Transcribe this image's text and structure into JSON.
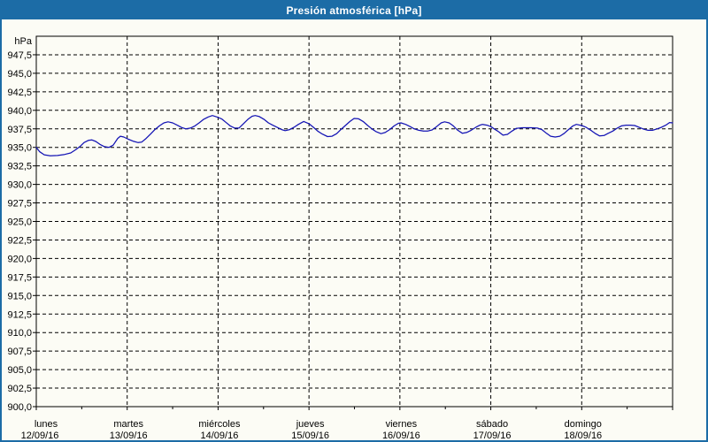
{
  "window": {
    "title": "Presión atmosférica [hPa]"
  },
  "colors": {
    "titlebar_bg": "#1c6ca6",
    "titlebar_text": "#ffffff",
    "frame": "#1c6ca6",
    "background": "#fcfcf5",
    "grid": "#000000",
    "axis": "#000000",
    "line": "#1212b4"
  },
  "chart_data": {
    "type": "line",
    "title": "Presión atmosférica [hPa]",
    "ylabel": "hPa",
    "ylim": [
      900,
      950
    ],
    "grid": "dashed",
    "legend": "none",
    "x_hours": 168,
    "y_ticks": [
      {
        "v": 947.5,
        "label": "947,5"
      },
      {
        "v": 945.0,
        "label": "945,0"
      },
      {
        "v": 942.5,
        "label": "942,5"
      },
      {
        "v": 940.0,
        "label": "940,0"
      },
      {
        "v": 937.5,
        "label": "937,5"
      },
      {
        "v": 935.0,
        "label": "935,0"
      },
      {
        "v": 932.5,
        "label": "932,5"
      },
      {
        "v": 930.0,
        "label": "930,0"
      },
      {
        "v": 927.5,
        "label": "927,5"
      },
      {
        "v": 925.0,
        "label": "925,0"
      },
      {
        "v": 922.5,
        "label": "922,5"
      },
      {
        "v": 920.0,
        "label": "920,0"
      },
      {
        "v": 917.5,
        "label": "917,5"
      },
      {
        "v": 915.0,
        "label": "915,0"
      },
      {
        "v": 912.5,
        "label": "912,5"
      },
      {
        "v": 910.0,
        "label": "910,0"
      },
      {
        "v": 907.5,
        "label": "907,5"
      },
      {
        "v": 905.0,
        "label": "905,0"
      },
      {
        "v": 902.5,
        "label": "902,5"
      },
      {
        "v": 900.0,
        "label": "900,0"
      }
    ],
    "x_days": [
      {
        "name": "lunes",
        "date": "12/09/16"
      },
      {
        "name": "martes",
        "date": "13/09/16"
      },
      {
        "name": "miércoles",
        "date": "14/09/16"
      },
      {
        "name": "jueves",
        "date": "15/09/16"
      },
      {
        "name": "viernes",
        "date": "16/09/16"
      },
      {
        "name": "sábado",
        "date": "17/09/16"
      },
      {
        "name": "domingo",
        "date": "18/09/16"
      }
    ],
    "series": [
      {
        "name": "Presión atmosférica",
        "color": "#1212b4",
        "points": [
          [
            0,
            935.0
          ],
          [
            0.9,
            934.4
          ],
          [
            2.1,
            934.0
          ],
          [
            3.7,
            933.85
          ],
          [
            5.6,
            933.9
          ],
          [
            7.5,
            934.05
          ],
          [
            9.1,
            934.25
          ],
          [
            10.3,
            934.65
          ],
          [
            11.5,
            935.1
          ],
          [
            12.6,
            935.65
          ],
          [
            13.8,
            935.95
          ],
          [
            14.7,
            936.0
          ],
          [
            15.7,
            935.8
          ],
          [
            16.8,
            935.4
          ],
          [
            18,
            935.1
          ],
          [
            19.2,
            935.0
          ],
          [
            20.3,
            935.3
          ],
          [
            21.5,
            936.2
          ],
          [
            22.2,
            936.5
          ],
          [
            23.1,
            936.4
          ],
          [
            24.3,
            936.1
          ],
          [
            25.5,
            935.85
          ],
          [
            26.9,
            935.65
          ],
          [
            27.8,
            935.7
          ],
          [
            29,
            936.2
          ],
          [
            30.2,
            936.8
          ],
          [
            31.3,
            937.4
          ],
          [
            32.5,
            937.9
          ],
          [
            33.7,
            938.3
          ],
          [
            34.8,
            938.45
          ],
          [
            36,
            938.3
          ],
          [
            37.2,
            938.0
          ],
          [
            38.3,
            937.7
          ],
          [
            39.5,
            937.5
          ],
          [
            40.7,
            937.6
          ],
          [
            41.9,
            937.9
          ],
          [
            43,
            938.3
          ],
          [
            44.2,
            938.8
          ],
          [
            45.4,
            939.1
          ],
          [
            46.5,
            939.3
          ],
          [
            47.7,
            939.1
          ],
          [
            48.9,
            938.85
          ],
          [
            50,
            938.4
          ],
          [
            51.2,
            937.9
          ],
          [
            52.4,
            937.6
          ],
          [
            53.5,
            937.6
          ],
          [
            54.7,
            938.2
          ],
          [
            55.9,
            938.8
          ],
          [
            57,
            939.2
          ],
          [
            57.8,
            939.3
          ],
          [
            58.9,
            939.15
          ],
          [
            60.1,
            938.8
          ],
          [
            61.3,
            938.3
          ],
          [
            62.4,
            938.0
          ],
          [
            63.6,
            937.7
          ],
          [
            64.8,
            937.4
          ],
          [
            65.7,
            937.25
          ],
          [
            66.9,
            937.4
          ],
          [
            68,
            937.7
          ],
          [
            69.2,
            938.1
          ],
          [
            70.6,
            938.5
          ],
          [
            72,
            938.2
          ],
          [
            73.2,
            937.7
          ],
          [
            74.3,
            937.2
          ],
          [
            75.5,
            936.8
          ],
          [
            76.9,
            936.45
          ],
          [
            78.1,
            936.5
          ],
          [
            79.3,
            936.85
          ],
          [
            80.4,
            937.4
          ],
          [
            81.6,
            937.95
          ],
          [
            82.8,
            938.5
          ],
          [
            83.9,
            938.9
          ],
          [
            85.1,
            938.85
          ],
          [
            86.3,
            938.5
          ],
          [
            87.4,
            938.0
          ],
          [
            88.6,
            937.5
          ],
          [
            89.8,
            937.1
          ],
          [
            91,
            936.85
          ],
          [
            92.1,
            937.0
          ],
          [
            93.3,
            937.4
          ],
          [
            94.5,
            937.9
          ],
          [
            95.6,
            938.25
          ],
          [
            96.3,
            938.3
          ],
          [
            97.5,
            938.1
          ],
          [
            98.7,
            937.8
          ],
          [
            99.8,
            937.5
          ],
          [
            101,
            937.3
          ],
          [
            102.2,
            937.2
          ],
          [
            103.3,
            937.2
          ],
          [
            104.5,
            937.35
          ],
          [
            105.7,
            937.8
          ],
          [
            106.9,
            938.3
          ],
          [
            107.8,
            938.45
          ],
          [
            109,
            938.3
          ],
          [
            110.1,
            937.9
          ],
          [
            111.3,
            937.3
          ],
          [
            112.5,
            936.9
          ],
          [
            113.6,
            937.0
          ],
          [
            114.8,
            937.3
          ],
          [
            116,
            937.7
          ],
          [
            117.1,
            938.0
          ],
          [
            117.8,
            938.1
          ],
          [
            119,
            938.0
          ],
          [
            120,
            937.8
          ],
          [
            120.9,
            937.5
          ],
          [
            122.1,
            937.1
          ],
          [
            123.2,
            936.65
          ],
          [
            124.4,
            936.75
          ],
          [
            125.6,
            937.2
          ],
          [
            126.7,
            937.55
          ],
          [
            128.4,
            937.65
          ],
          [
            130.7,
            937.65
          ],
          [
            132.3,
            937.6
          ],
          [
            133.5,
            937.4
          ],
          [
            134.7,
            936.9
          ],
          [
            135.8,
            936.5
          ],
          [
            137,
            936.4
          ],
          [
            138.2,
            936.5
          ],
          [
            139.4,
            936.9
          ],
          [
            140.5,
            937.4
          ],
          [
            141.7,
            937.9
          ],
          [
            142.6,
            938.1
          ],
          [
            144,
            937.95
          ],
          [
            145.2,
            937.7
          ],
          [
            146.4,
            937.3
          ],
          [
            147.5,
            936.9
          ],
          [
            148.7,
            936.55
          ],
          [
            149.9,
            936.6
          ],
          [
            151,
            936.9
          ],
          [
            152.2,
            937.2
          ],
          [
            153.4,
            937.6
          ],
          [
            154.5,
            937.9
          ],
          [
            155.7,
            938.0
          ],
          [
            156.9,
            938.0
          ],
          [
            158,
            937.95
          ],
          [
            159.2,
            937.7
          ],
          [
            160.4,
            937.45
          ],
          [
            161.5,
            937.3
          ],
          [
            162.7,
            937.3
          ],
          [
            163.9,
            937.5
          ],
          [
            165,
            937.7
          ],
          [
            166.2,
            938.0
          ],
          [
            167.2,
            938.35
          ],
          [
            168,
            938.3
          ]
        ]
      }
    ]
  }
}
